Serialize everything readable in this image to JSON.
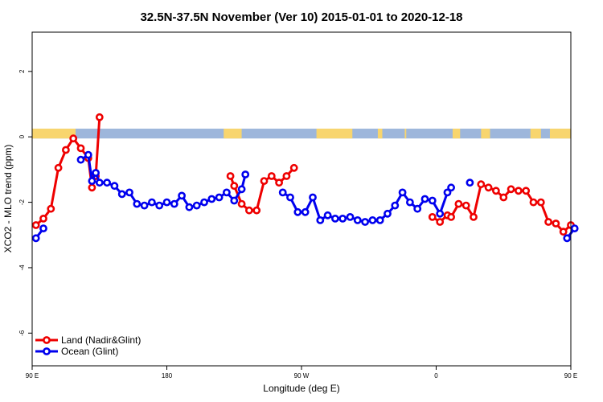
{
  "chart_data": {
    "type": "line",
    "title": "32.5N-37.5N November (Ver 10)   2015-01-01 to 2020-12-18",
    "xlabel": "Longitude (deg E)",
    "ylabel": "XCO2 - MLO trend (ppm)",
    "xlim": [
      90,
      450
    ],
    "ylim": [
      -7,
      3.2
    ],
    "x_ticks": [
      {
        "value": 90,
        "label": "90 E"
      },
      {
        "value": 180,
        "label": "180"
      },
      {
        "value": 270,
        "label": "90 W"
      },
      {
        "value": 360,
        "label": "0"
      },
      {
        "value": 450,
        "label": "90 E"
      },
      {
        "value": 540,
        "label": "180"
      }
    ],
    "y_ticks": [
      {
        "value": 2,
        "label": "2"
      },
      {
        "value": 0,
        "label": "0"
      },
      {
        "value": -2,
        "label": "-2"
      },
      {
        "value": -4,
        "label": "-4"
      },
      {
        "value": -6,
        "label": "-6"
      }
    ],
    "legend_position": "bottom-left",
    "land_ocean_strip": {
      "y_top": 0.25,
      "y_bottom": -0.05,
      "ocean_color": "#9db6db",
      "land_color": "#f8d56e",
      "land_segments": [
        [
          90,
          119
        ],
        [
          218,
          230
        ],
        [
          280,
          304
        ],
        [
          321,
          324
        ],
        [
          339,
          340
        ],
        [
          371,
          376
        ],
        [
          390,
          396
        ],
        [
          423,
          430
        ],
        [
          436,
          450
        ]
      ]
    },
    "series": [
      {
        "name": "Land (Nadir&Glint)",
        "color": "#ee0000",
        "segments": [
          [
            [
              92.5,
              -2.7
            ],
            [
              97.5,
              -2.5
            ],
            [
              102.5,
              -2.2
            ],
            [
              107.5,
              -0.95
            ],
            [
              112.5,
              -0.4
            ],
            [
              117.5,
              -0.05
            ],
            [
              122.5,
              -0.35
            ],
            [
              127.5,
              -0.65
            ],
            [
              130,
              -1.55
            ],
            [
              132.5,
              -1.2
            ],
            [
              135,
              0.6
            ]
          ],
          [
            [
              222.5,
              -1.2
            ],
            [
              225,
              -1.5
            ],
            [
              230,
              -2.05
            ],
            [
              235,
              -2.25
            ],
            [
              240,
              -2.25
            ],
            [
              245,
              -1.35
            ],
            [
              250,
              -1.2
            ],
            [
              255,
              -1.4
            ],
            [
              260,
              -1.2
            ],
            [
              265,
              -0.95
            ]
          ],
          [
            [
              357.5,
              -2.45
            ],
            [
              362.5,
              -2.6
            ],
            [
              367.5,
              -2.4
            ],
            [
              370,
              -2.45
            ],
            [
              375,
              -2.05
            ],
            [
              380,
              -2.1
            ],
            [
              385,
              -2.45
            ],
            [
              390,
              -1.45
            ],
            [
              395,
              -1.55
            ],
            [
              400,
              -1.65
            ],
            [
              405,
              -1.85
            ],
            [
              410,
              -1.6
            ],
            [
              415,
              -1.65
            ],
            [
              420,
              -1.65
            ],
            [
              425,
              -2.0
            ],
            [
              430,
              -2.0
            ],
            [
              435,
              -2.6
            ],
            [
              440,
              -2.65
            ],
            [
              445,
              -2.9
            ],
            [
              450,
              -2.7
            ]
          ]
        ]
      },
      {
        "name": "Ocean (Glint)",
        "color": "#0000ee",
        "segments": [
          [
            [
              92.5,
              -3.1
            ],
            [
              97.5,
              -2.8
            ]
          ],
          [
            [
              122.5,
              -0.7
            ],
            [
              127.5,
              -0.55
            ],
            [
              130,
              -1.35
            ],
            [
              132.5,
              -1.1
            ],
            [
              135,
              -1.4
            ],
            [
              140,
              -1.4
            ],
            [
              145,
              -1.5
            ],
            [
              150,
              -1.75
            ],
            [
              155,
              -1.7
            ],
            [
              160,
              -2.05
            ],
            [
              165,
              -2.1
            ],
            [
              170,
              -2.0
            ],
            [
              175,
              -2.1
            ],
            [
              180,
              -2.0
            ],
            [
              185,
              -2.05
            ],
            [
              190,
              -1.8
            ],
            [
              195,
              -2.15
            ],
            [
              200,
              -2.1
            ],
            [
              205,
              -2.0
            ],
            [
              210,
              -1.9
            ],
            [
              215,
              -1.85
            ],
            [
              220,
              -1.7
            ],
            [
              225,
              -1.95
            ],
            [
              230,
              -1.6
            ],
            [
              232.5,
              -1.15
            ]
          ],
          [
            [
              257.5,
              -1.7
            ],
            [
              262.5,
              -1.85
            ],
            [
              267.5,
              -2.3
            ],
            [
              272.5,
              -2.3
            ],
            [
              277.5,
              -1.85
            ],
            [
              282.5,
              -2.55
            ],
            [
              287.5,
              -2.4
            ],
            [
              292.5,
              -2.5
            ],
            [
              297.5,
              -2.5
            ],
            [
              302.5,
              -2.45
            ],
            [
              307.5,
              -2.55
            ],
            [
              312.5,
              -2.6
            ],
            [
              317.5,
              -2.55
            ],
            [
              322.5,
              -2.55
            ],
            [
              327.5,
              -2.35
            ],
            [
              332.5,
              -2.1
            ],
            [
              337.5,
              -1.7
            ],
            [
              342.5,
              -2.0
            ],
            [
              347.5,
              -2.2
            ],
            [
              352.5,
              -1.9
            ],
            [
              357.5,
              -1.95
            ],
            [
              362.5,
              -2.35
            ],
            [
              367.5,
              -1.7
            ],
            [
              370,
              -1.55
            ]
          ],
          [
            [
              382.5,
              -1.4
            ]
          ],
          [
            [
              447.5,
              -3.1
            ],
            [
              452.5,
              -2.8
            ]
          ]
        ]
      }
    ]
  }
}
